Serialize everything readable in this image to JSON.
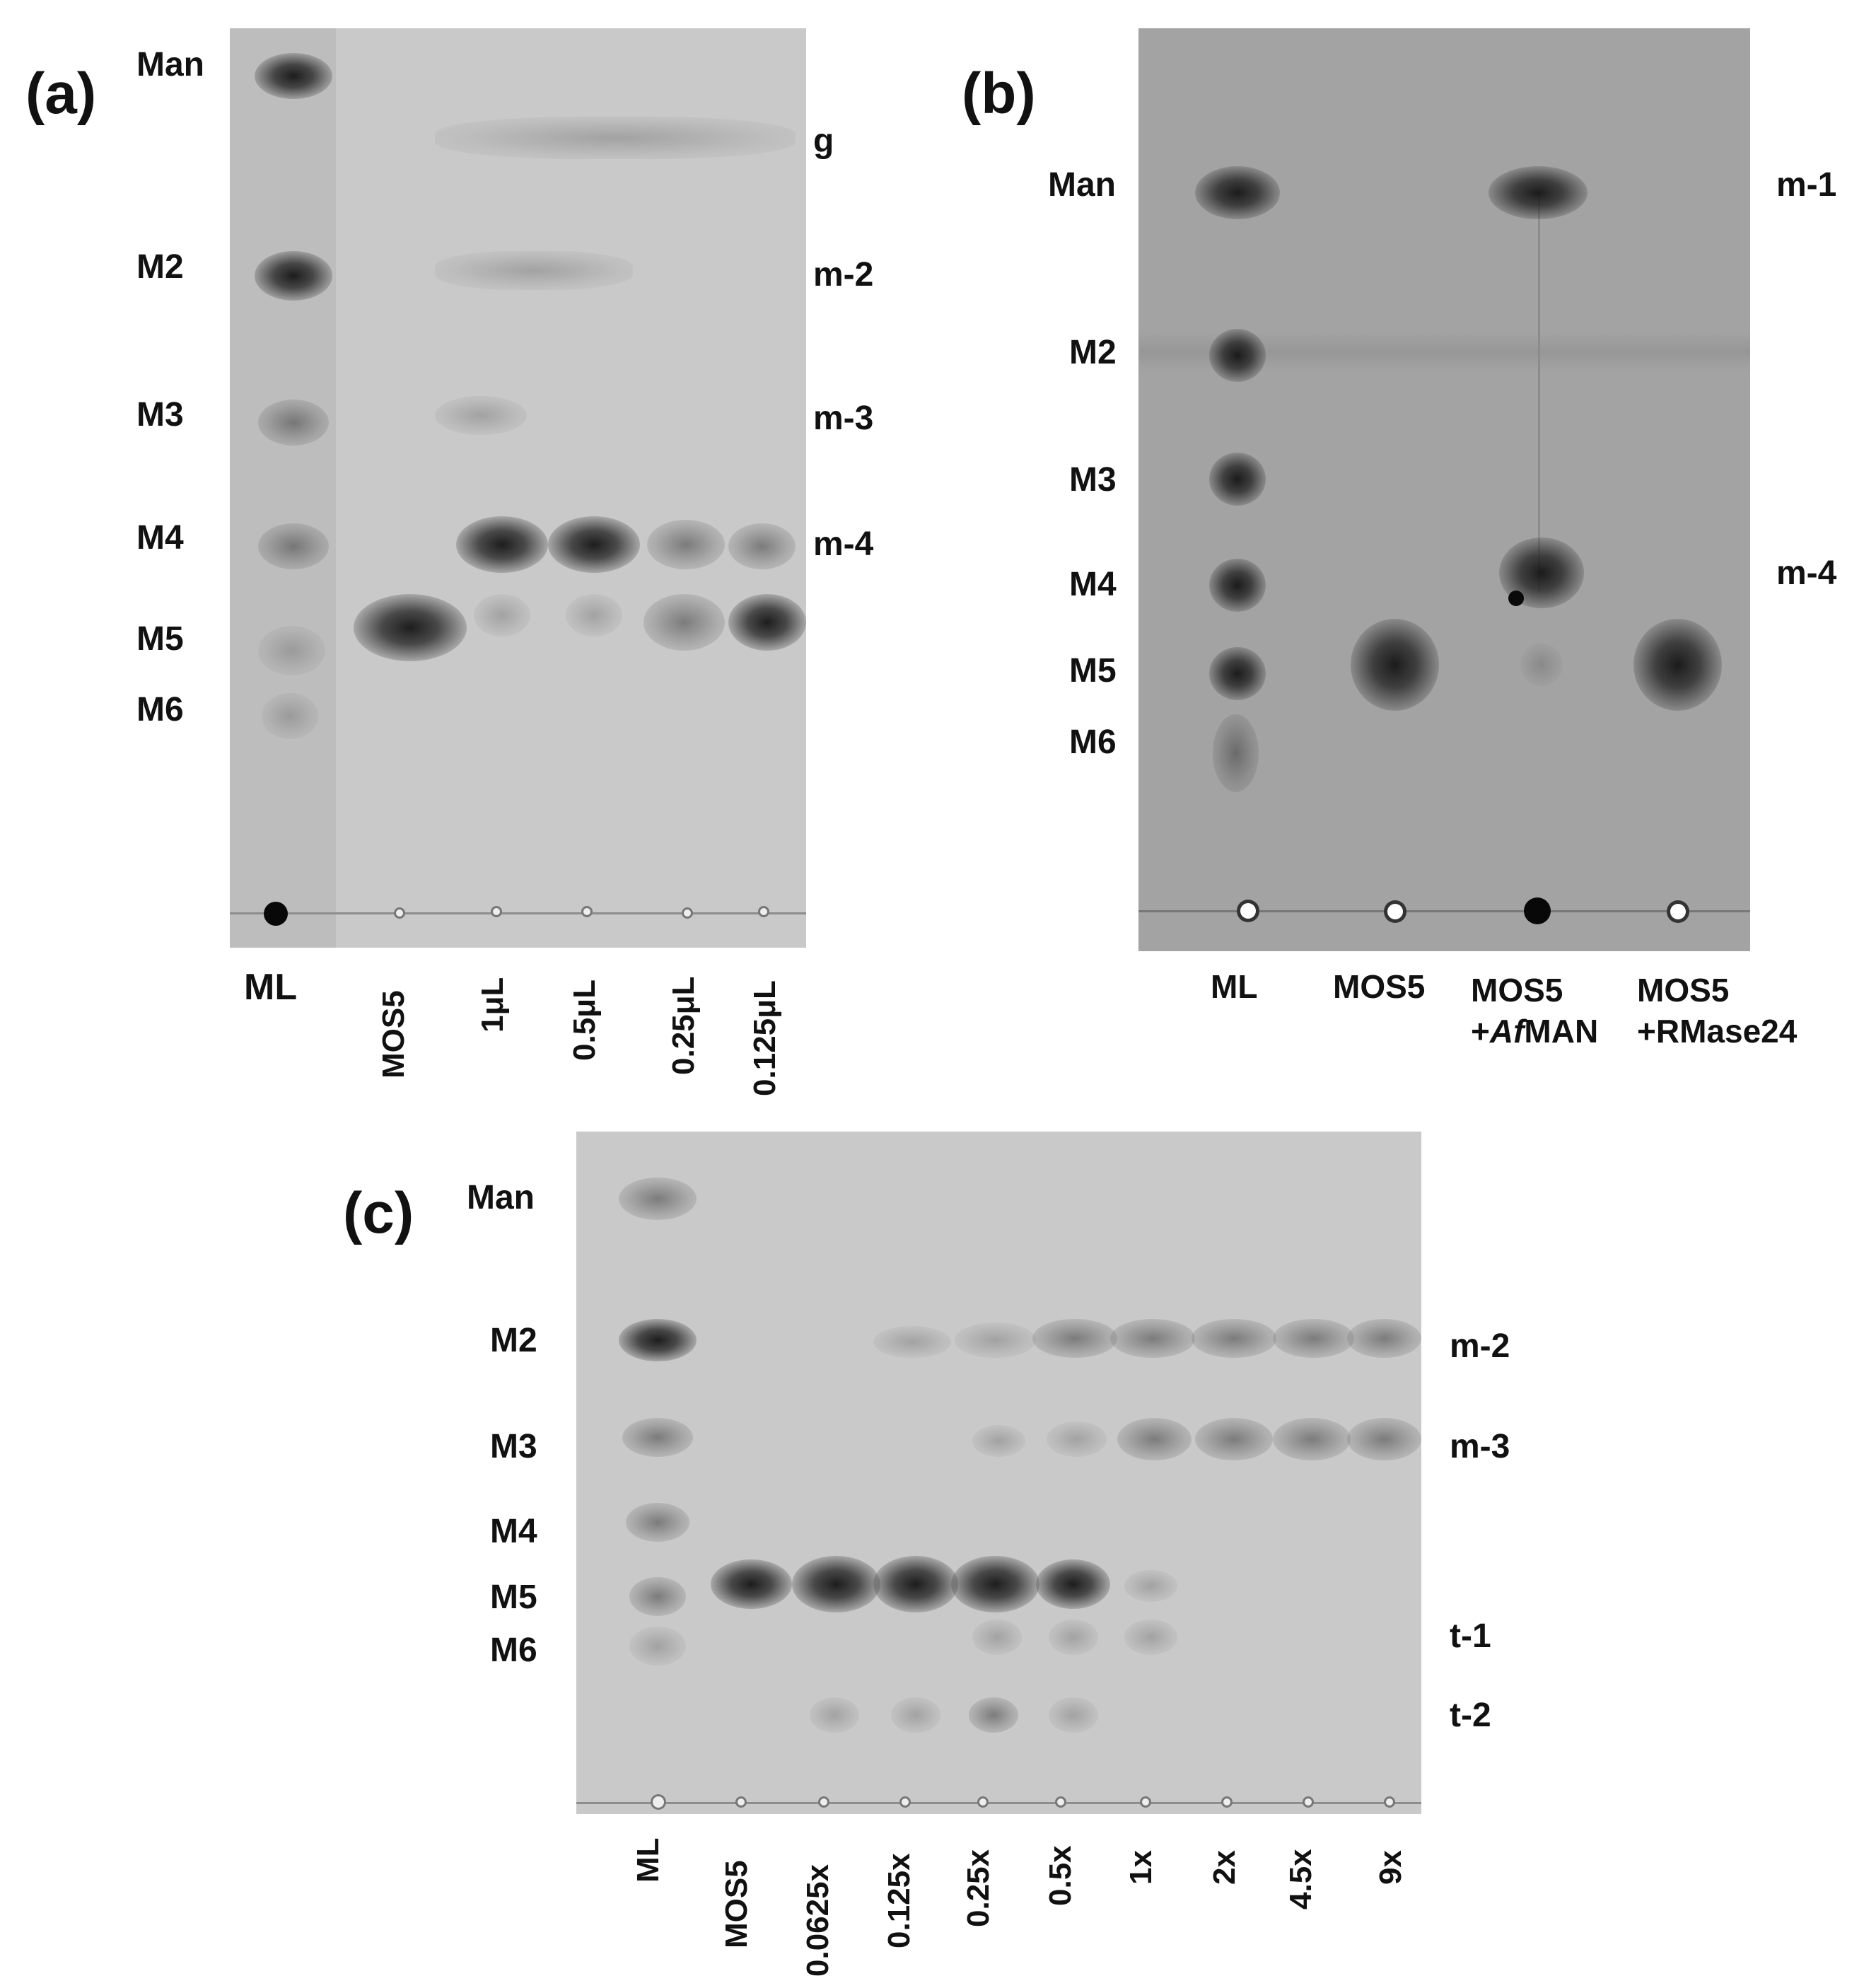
{
  "panel_a": {
    "letter": "(a)",
    "left_labels": [
      "Man",
      "M2",
      "M3",
      "M4",
      "M5",
      "M6"
    ],
    "right_labels": [
      "g",
      "m-2",
      "m-3",
      "m-4"
    ],
    "lanes": [
      "ML",
      "MOS5",
      "1μL",
      "0.5μL",
      "0.25μL",
      "0.125μL"
    ]
  },
  "panel_b": {
    "letter": "(b)",
    "left_labels": [
      "Man",
      "M2",
      "M3",
      "M4",
      "M5",
      "M6"
    ],
    "right_labels": [
      "m-1",
      "m-4"
    ],
    "lanes": [
      {
        "line1": "ML",
        "line2": "",
        "line2_ital": "",
        "line2_rest": ""
      },
      {
        "line1": "MOS5",
        "line2": "",
        "line2_ital": "",
        "line2_rest": ""
      },
      {
        "line1": "MOS5",
        "line2": "+",
        "line2_ital": "Af",
        "line2_rest": "MAN"
      },
      {
        "line1": "MOS5",
        "line2": "+RMase24",
        "line2_ital": "",
        "line2_rest": ""
      }
    ]
  },
  "panel_c": {
    "letter": "(c)",
    "left_labels": [
      "Man",
      "M2",
      "M3",
      "M4",
      "M5",
      "M6"
    ],
    "right_labels": [
      "m-2",
      "m-3",
      "t-1",
      "t-2"
    ],
    "lanes": [
      "ML",
      "MOS5",
      "0.0625x",
      "0.125x",
      "0.25x",
      "0.5x",
      "1x",
      "2x",
      "4.5x",
      "9x"
    ]
  }
}
